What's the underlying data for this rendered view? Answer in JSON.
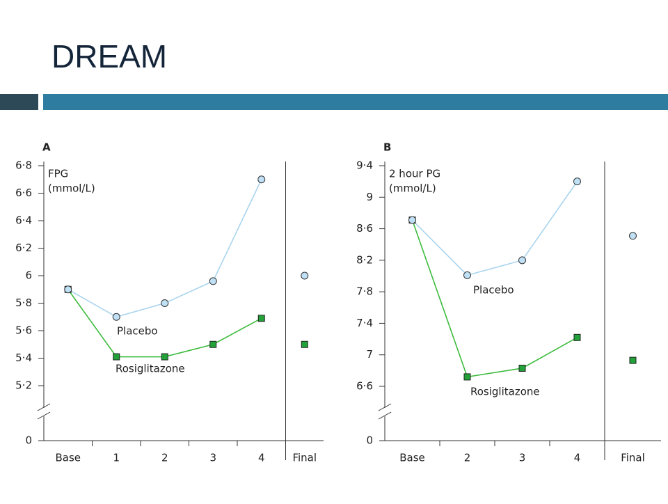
{
  "title": "DREAM",
  "chart_data": [
    {
      "type": "line",
      "panel": "A",
      "y_label": [
        "FPG",
        "(mmol/L)"
      ],
      "categories": [
        "Base",
        "1",
        "2",
        "3",
        "4",
        "Final"
      ],
      "connect_last": false,
      "series": [
        {
          "name": "Placebo",
          "color": "#a9d4ee",
          "marker": "circle",
          "marker_color": "#bfe0f5",
          "values": [
            5.9,
            5.7,
            5.8,
            5.96,
            6.7,
            6.0
          ]
        },
        {
          "name": "Rosiglitazone",
          "color": "#3dbb3d",
          "marker": "square",
          "marker_color": "#22a33a",
          "values": [
            5.9,
            5.41,
            5.41,
            5.5,
            5.69,
            5.5
          ]
        }
      ],
      "ylim": [
        0,
        6.8
      ],
      "axis_break": [
        0,
        5.2
      ],
      "yticks": [
        0,
        {
          "value": 5.2,
          "label": "5·2"
        },
        {
          "value": 5.4,
          "label": "5·4"
        },
        {
          "value": 5.6,
          "label": "5·6"
        },
        {
          "value": 5.8,
          "label": "5·8"
        },
        6,
        {
          "value": 6.2,
          "label": "6·2"
        },
        {
          "value": 6.4,
          "label": "6·4"
        },
        {
          "value": 6.6,
          "label": "6·6"
        },
        {
          "value": 6.8,
          "label": "6·8"
        }
      ]
    },
    {
      "type": "line",
      "panel": "B",
      "y_label": [
        "2 hour PG",
        "(mmol/L)"
      ],
      "categories": [
        "Base",
        "2",
        "3",
        "4",
        "Final"
      ],
      "connect_last": false,
      "series": [
        {
          "name": "Placebo",
          "color": "#a9d4ee",
          "marker": "circle",
          "marker_color": "#bfe0f5",
          "values": [
            8.71,
            8.01,
            8.2,
            9.2,
            8.51
          ]
        },
        {
          "name": "Rosiglitazone",
          "color": "#3dbb3d",
          "marker": "square",
          "marker_color": "#22a33a",
          "values": [
            8.71,
            6.72,
            6.83,
            7.22,
            6.93
          ]
        }
      ],
      "ylim": [
        0,
        9.4
      ],
      "axis_break": [
        0,
        6.6
      ],
      "yticks": [
        0,
        {
          "value": 6.6,
          "label": "6·6"
        },
        7,
        {
          "value": 7.4,
          "label": "7·4"
        },
        {
          "value": 7.8,
          "label": "7·8"
        },
        {
          "value": 8.2,
          "label": "8·2"
        },
        {
          "value": 8.6,
          "label": "8·6"
        },
        9,
        {
          "value": 9.4,
          "label": "9·4"
        }
      ]
    }
  ]
}
